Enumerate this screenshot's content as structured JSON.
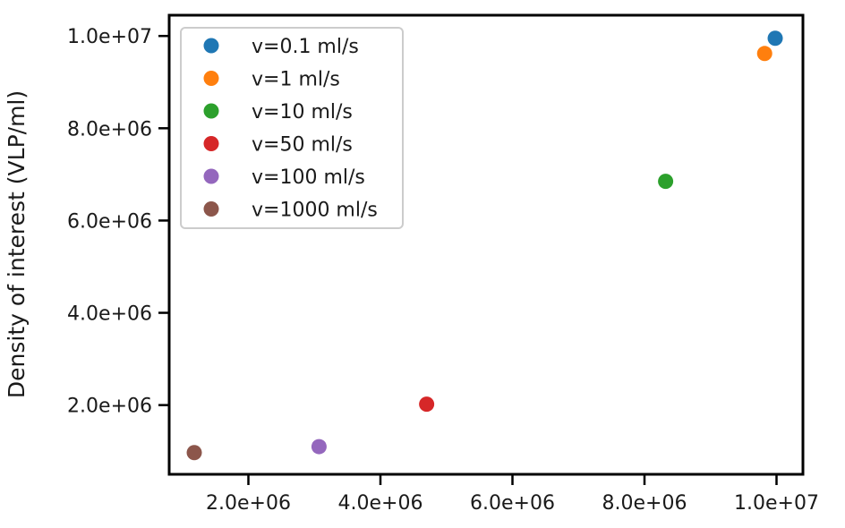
{
  "chart_data": {
    "type": "scatter",
    "xlabel": "",
    "ylabel": "Density of interest (VLP/ml)",
    "xlim": [
      800000,
      10400000
    ],
    "ylim": [
      500000,
      10450000
    ],
    "xticks": [
      2000000,
      4000000,
      6000000,
      8000000,
      10000000
    ],
    "xtick_labels": [
      "2.0e+06",
      "4.0e+06",
      "6.0e+06",
      "8.0e+06",
      "1.0e+07"
    ],
    "yticks": [
      2000000,
      4000000,
      6000000,
      8000000,
      10000000
    ],
    "ytick_labels": [
      "2.0e+06",
      "4.0e+06",
      "6.0e+06",
      "8.0e+06",
      "1.0e+07"
    ],
    "grid": false,
    "legend_position": "top-left",
    "series": [
      {
        "name": "v=0.1 ml/s",
        "color": "#1f77b4",
        "x": [
          9980000
        ],
        "y": [
          9950000
        ]
      },
      {
        "name": "v=1 ml/s",
        "color": "#ff7f0e",
        "x": [
          9820000
        ],
        "y": [
          9620000
        ]
      },
      {
        "name": "v=10 ml/s",
        "color": "#2ca02c",
        "x": [
          8320000
        ],
        "y": [
          6850000
        ]
      },
      {
        "name": "v=50 ml/s",
        "color": "#d62728",
        "x": [
          4700000
        ],
        "y": [
          2020000
        ]
      },
      {
        "name": "v=100 ml/s",
        "color": "#9467bd",
        "x": [
          3070000
        ],
        "y": [
          1100000
        ]
      },
      {
        "name": "v=1000 ml/s",
        "color": "#8c564b",
        "x": [
          1180000
        ],
        "y": [
          970000
        ]
      }
    ]
  }
}
